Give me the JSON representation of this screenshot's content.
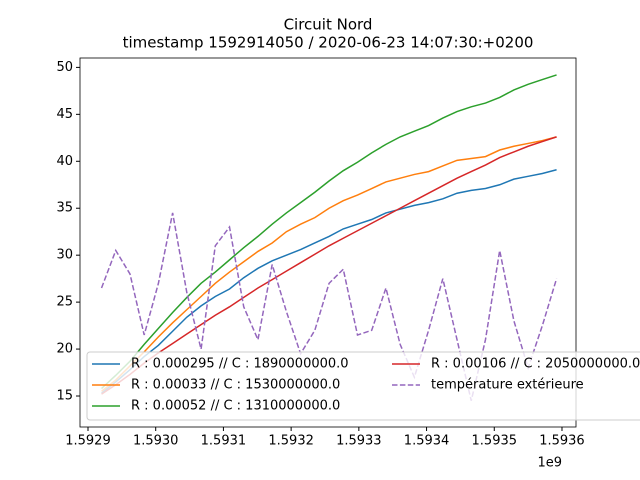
{
  "chart_data": {
    "type": "line",
    "title": "Circuit Nord",
    "subtitle": "timestamp 1592914050 / 2020-06-23 14:07:30:+0200",
    "x": [
      1592920000,
      1592941000,
      1592962000,
      1592983000,
      1593004000,
      1593025000,
      1593046000,
      1593067000,
      1593088000,
      1593109000,
      1593130000,
      1593151000,
      1593172000,
      1593193000,
      1593214000,
      1593235000,
      1593256000,
      1593277000,
      1593298000,
      1593319000,
      1593340000,
      1593361000,
      1593382000,
      1593403000,
      1593424000,
      1593445000,
      1593466000,
      1593487000,
      1593508000,
      1593529000,
      1593550000,
      1593571000,
      1593592000
    ],
    "series": [
      {
        "name": "R : 0.000295 // C : 1890000000.0",
        "color": "#1f77b4",
        "dash": false,
        "values": [
          15.3,
          16.5,
          17.8,
          19.2,
          20.4,
          21.9,
          23.4,
          24.6,
          25.6,
          26.4,
          27.6,
          28.6,
          29.4,
          30.0,
          30.6,
          31.3,
          32.0,
          32.8,
          33.3,
          33.8,
          34.5,
          34.9,
          35.3,
          35.6,
          36.0,
          36.6,
          36.9,
          37.1,
          37.5,
          38.1,
          38.4,
          38.7,
          39.1
        ]
      },
      {
        "name": "R : 0.00033 // C : 1530000000.0",
        "color": "#ff7f0e",
        "dash": false,
        "values": [
          15.5,
          16.7,
          18.2,
          19.7,
          21.3,
          22.8,
          24.2,
          25.6,
          27.0,
          28.2,
          29.3,
          30.4,
          31.3,
          32.5,
          33.3,
          34.0,
          35.0,
          35.8,
          36.4,
          37.1,
          37.8,
          38.2,
          38.6,
          38.9,
          39.5,
          40.1,
          40.3,
          40.5,
          41.2,
          41.6,
          41.9,
          42.2,
          42.6
        ]
      },
      {
        "name": "R : 0.00052 // C : 1310000000.0",
        "color": "#2ca02c",
        "dash": false,
        "values": [
          15.8,
          17.2,
          18.7,
          20.5,
          22.2,
          23.9,
          25.5,
          27.0,
          28.2,
          29.5,
          30.8,
          32.0,
          33.3,
          34.5,
          35.6,
          36.7,
          37.9,
          39.0,
          39.9,
          40.9,
          41.8,
          42.6,
          43.2,
          43.8,
          44.6,
          45.3,
          45.8,
          46.2,
          46.8,
          47.6,
          48.2,
          48.7,
          49.2
        ]
      },
      {
        "name": "R : 0.00106 // C : 2050000000.0",
        "color": "#d62728",
        "dash": false,
        "values": [
          15.2,
          16.2,
          17.3,
          18.5,
          19.6,
          20.6,
          21.6,
          22.6,
          23.6,
          24.5,
          25.5,
          26.5,
          27.4,
          28.3,
          29.2,
          30.1,
          31.0,
          31.8,
          32.6,
          33.4,
          34.2,
          35.0,
          35.8,
          36.6,
          37.4,
          38.2,
          38.9,
          39.6,
          40.4,
          41.0,
          41.6,
          42.1,
          42.6
        ]
      },
      {
        "name": "température extérieure",
        "color": "#9467bd",
        "dash": true,
        "values": [
          26.5,
          30.5,
          28,
          21.5,
          27,
          34.5,
          26,
          20,
          31,
          33,
          24.5,
          21,
          29,
          24,
          19.5,
          22,
          27,
          28.5,
          21.5,
          22,
          26.5,
          20.5,
          17,
          22,
          27.5,
          21,
          14.5,
          21,
          30.5,
          23,
          18,
          22.5,
          27.5
        ]
      }
    ],
    "xlim": [
      1592888200,
      1593620700
    ],
    "ylim": [
      11.7,
      51.0
    ],
    "xticks": [
      {
        "value": 1592900000,
        "label": "1.5929"
      },
      {
        "value": 1593000000,
        "label": "1.5930"
      },
      {
        "value": 1593100000,
        "label": "1.5931"
      },
      {
        "value": 1593200000,
        "label": "1.5932"
      },
      {
        "value": 1593300000,
        "label": "1.5933"
      },
      {
        "value": 1593400000,
        "label": "1.5934"
      },
      {
        "value": 1593500000,
        "label": "1.5935"
      },
      {
        "value": 1593600000,
        "label": "1.5936"
      }
    ],
    "x_offset_label": "1e9",
    "yticks": [
      15,
      20,
      25,
      30,
      35,
      40,
      45,
      50
    ],
    "grid": false,
    "legend": "lower left"
  }
}
